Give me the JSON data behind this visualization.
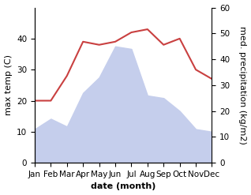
{
  "months": [
    "Jan",
    "Feb",
    "Mar",
    "Apr",
    "May",
    "Jun",
    "Jul",
    "Aug",
    "Sep",
    "Oct",
    "Nov",
    "Dec"
  ],
  "temperature": [
    20,
    20,
    28,
    39,
    38,
    39,
    42,
    43,
    38,
    40,
    30,
    27
  ],
  "precipitation": [
    13,
    17,
    14,
    27,
    33,
    45,
    44,
    26,
    25,
    20,
    13,
    12
  ],
  "temp_color": "#c94040",
  "precip_fill_color": "#c5ceec",
  "ylabel_left": "max temp (C)",
  "ylabel_right": "med. precipitation (kg/m2)",
  "xlabel": "date (month)",
  "ylim_left": [
    0,
    50
  ],
  "ylim_right": [
    0,
    60
  ],
  "yticks_left": [
    0,
    10,
    20,
    30,
    40
  ],
  "yticks_right": [
    0,
    10,
    20,
    30,
    40,
    50,
    60
  ],
  "label_fontsize": 8,
  "tick_fontsize": 7.5
}
